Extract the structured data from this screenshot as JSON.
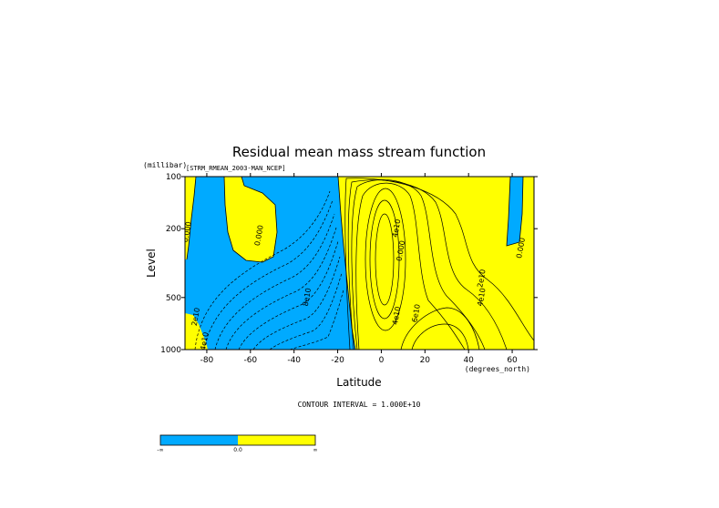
{
  "chart_data": {
    "type": "contour",
    "title": "Residual mean mass stream function",
    "subtitle": "[STRM_RMEAN_2003-MAN_NCEP]",
    "xlabel": "Latitude",
    "x_units": "(degrees_north)",
    "ylabel": "Level",
    "y_units": "(millibar)",
    "y_scale": "log",
    "xlim": [
      -90,
      70
    ],
    "ylim": [
      1000,
      100
    ],
    "x_ticks": [
      -80,
      -60,
      -40,
      -20,
      0,
      20,
      40,
      60
    ],
    "x_tick_labels": [
      "-80",
      "-60",
      "-40",
      "-20",
      "0",
      "20",
      "40",
      "60"
    ],
    "y_ticks": [
      100,
      200,
      500,
      1000
    ],
    "y_tick_labels": [
      "100",
      "200",
      "500",
      "1000"
    ],
    "footer": "CONTOUR INTERVAL = 1.000E+10",
    "colors": {
      "negative": "#00aaff",
      "positive": "#ffff00",
      "lines": "#000000"
    },
    "colorbar": {
      "segments": [
        {
          "color": "#00aaff"
        },
        {
          "color": "#ffff00"
        }
      ],
      "labels": [
        "-∞",
        "0.0",
        "∞"
      ]
    },
    "contour_labels": [
      {
        "text": "0.000",
        "lat": -88,
        "p": 210
      },
      {
        "text": "0.000",
        "lat": -55,
        "p": 220
      },
      {
        "text": "0.000",
        "lat": 65,
        "p": 260
      },
      {
        "text": "0.000",
        "lat": 10,
        "p": 270
      },
      {
        "text": "2e10",
        "lat": -84,
        "p": 650
      },
      {
        "text": "4e10",
        "lat": -80,
        "p": 900
      },
      {
        "text": "8e10",
        "lat": -33,
        "p": 500
      },
      {
        "text": "4e10",
        "lat": 8,
        "p": 200
      },
      {
        "text": "4e10",
        "lat": 8,
        "p": 640
      },
      {
        "text": "6e10",
        "lat": 17,
        "p": 620
      },
      {
        "text": "2e10",
        "lat": 47,
        "p": 390
      },
      {
        "text": "4e10",
        "lat": 47,
        "p": 500
      }
    ]
  }
}
